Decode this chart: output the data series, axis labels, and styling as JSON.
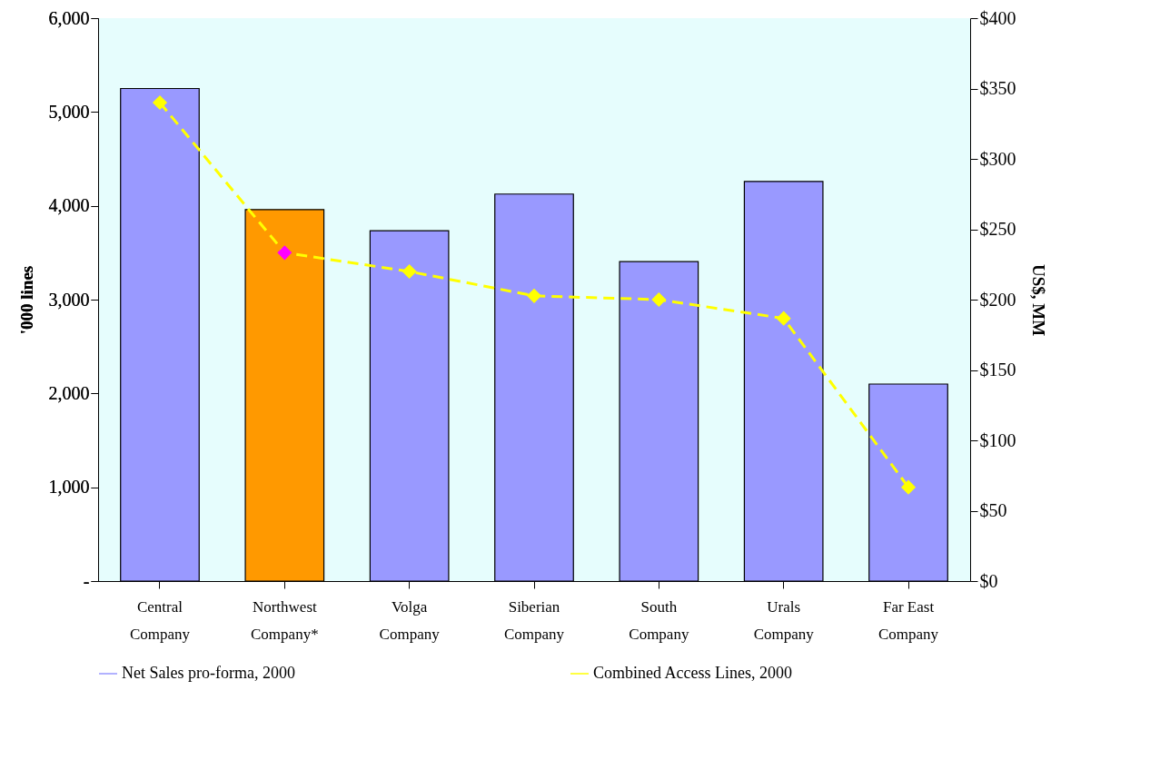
{
  "chart_data": {
    "type": "bar",
    "categories": [
      "Central Company",
      "Northwest Company*",
      "Volga Company",
      "Siberian Company",
      "South Company",
      "Urals Company",
      "Far East Company"
    ],
    "series": [
      {
        "name": "Net Sales pro-forma, 2000",
        "axis": "y2",
        "color": "#9999ff",
        "colors": [
          "#9999ff",
          "#ff9900",
          "#9999ff",
          "#9999ff",
          "#9999ff",
          "#9999ff",
          "#9999ff"
        ],
        "values": [
          350,
          264,
          249,
          275,
          227,
          284,
          140
        ]
      },
      {
        "name": "Combined Access Lines, 2000",
        "type": "line",
        "axis": "y",
        "color": "#ffff00",
        "colors": [
          "#ffff00",
          "#ff00ff",
          "#ffff00",
          "#ffff00",
          "#ffff00",
          "#ffff00",
          "#ffff00"
        ],
        "values": [
          5100,
          3500,
          3300,
          3040,
          3000,
          2800,
          1000
        ]
      }
    ],
    "ylabel": "'000 lines",
    "y2label": "US$, MM",
    "ylim": [
      0,
      6000
    ],
    "yticks": [
      {
        "value": 0,
        "label": "-"
      },
      {
        "value": 1000,
        "label": "1,000"
      },
      {
        "value": 2000,
        "label": "2,000"
      },
      {
        "value": 3000,
        "label": "3,000"
      },
      {
        "value": 4000,
        "label": "4,000"
      },
      {
        "value": 5000,
        "label": "5,000"
      },
      {
        "value": 6000,
        "label": "6,000"
      }
    ],
    "y2lim": [
      0,
      400
    ],
    "y2ticks": [
      {
        "value": 0,
        "label": "$0"
      },
      {
        "value": 50,
        "label": "$50"
      },
      {
        "value": 100,
        "label": "$100"
      },
      {
        "value": 150,
        "label": "$150"
      },
      {
        "value": 200,
        "label": "$200"
      },
      {
        "value": 250,
        "label": "$250"
      },
      {
        "value": 300,
        "label": "$300"
      },
      {
        "value": 350,
        "label": "$350"
      },
      {
        "value": 400,
        "label": "$400"
      }
    ],
    "legend": "bottom",
    "marker": "diamond",
    "line_style": "dashed"
  }
}
